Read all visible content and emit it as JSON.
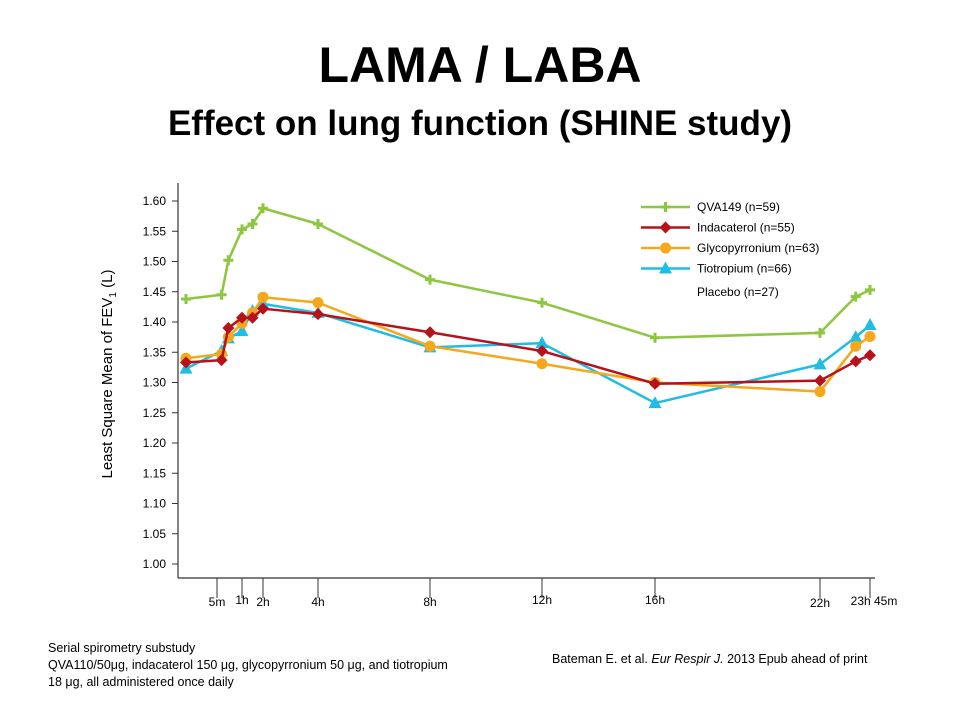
{
  "slide": {
    "title": "LAMA / LABA",
    "subtitle": "Effect on lung function  (SHINE study)",
    "footnote": [
      "Serial spirometry substudy",
      "QVA110/50μg, indacaterol 150 μg, glycopyrronium 50 μg, and tiotropium",
      "18 μg, all administered once daily"
    ],
    "citation": {
      "authors": "Bateman E. et al. ",
      "journal": "Eur Respir J.",
      "rest": " 2013 Epub ahead of print"
    }
  },
  "chart_data": {
    "type": "line",
    "title": "",
    "xlabel": "",
    "ylabel_main": "Least Square Mean of FEV",
    "ylabel_sub": "1",
    "ylabel_unit": " (L)",
    "ylim": [
      1.0,
      1.6
    ],
    "yticks": [
      "1.00",
      "1.05",
      "1.10",
      "1.15",
      "1.20",
      "1.25",
      "1.30",
      "1.35",
      "1.40",
      "1.45",
      "1.50",
      "1.55",
      "1.60"
    ],
    "x_unit": "minutes post-dose",
    "x_ticks": [
      {
        "x": 5,
        "label": "5m"
      },
      {
        "x": 60,
        "label": "1h"
      },
      {
        "x": 120,
        "label": "2h"
      },
      {
        "x": 240,
        "label": "4h"
      },
      {
        "x": 480,
        "label": "8h"
      },
      {
        "x": 720,
        "label": "12h"
      },
      {
        "x": 960,
        "label": "16h"
      },
      {
        "x": 1320,
        "label": "22h"
      },
      {
        "x": 1425,
        "label": "23h 45m"
      }
    ],
    "legend_position": "top-right",
    "series": [
      {
        "name": "QVA149 (n=59)",
        "color": "#8dc63f",
        "marker": "plus",
        "x": [
          -15,
          15,
          30,
          60,
          90,
          120,
          240,
          480,
          720,
          960,
          1320,
          1395,
          1425
        ],
        "y": [
          1.438,
          1.445,
          1.502,
          1.553,
          1.562,
          1.588,
          1.562,
          1.47,
          1.432,
          1.374,
          1.382,
          1.442,
          1.453
        ]
      },
      {
        "name": "Indacaterol (n=55)",
        "color": "#b5121b",
        "marker": "diamond",
        "x": [
          -15,
          15,
          30,
          60,
          90,
          120,
          240,
          480,
          720,
          960,
          1320,
          1395,
          1425
        ],
        "y": [
          1.333,
          1.337,
          1.39,
          1.407,
          1.407,
          1.422,
          1.413,
          1.383,
          1.352,
          1.298,
          1.303,
          1.335,
          1.345
        ]
      },
      {
        "name": "Glycopyrronium (n=63)",
        "color": "#f5a81c",
        "marker": "circle",
        "x": [
          -15,
          15,
          30,
          60,
          90,
          120,
          240,
          480,
          720,
          960,
          1320,
          1395,
          1425
        ],
        "y": [
          1.34,
          1.347,
          1.375,
          1.398,
          1.415,
          1.441,
          1.432,
          1.36,
          1.331,
          1.3,
          1.285,
          1.36,
          1.376
        ]
      },
      {
        "name": "Tiotropium (n=66)",
        "color": "#1fbde4",
        "marker": "triangle",
        "x": [
          -15,
          15,
          30,
          60,
          90,
          120,
          240,
          480,
          720,
          960,
          1320,
          1395,
          1425
        ],
        "y": [
          1.323,
          1.352,
          1.373,
          1.385,
          1.418,
          1.43,
          1.415,
          1.358,
          1.365,
          1.266,
          1.33,
          1.375,
          1.395
        ]
      }
    ],
    "legend_extra": "Placebo (n=27)"
  }
}
